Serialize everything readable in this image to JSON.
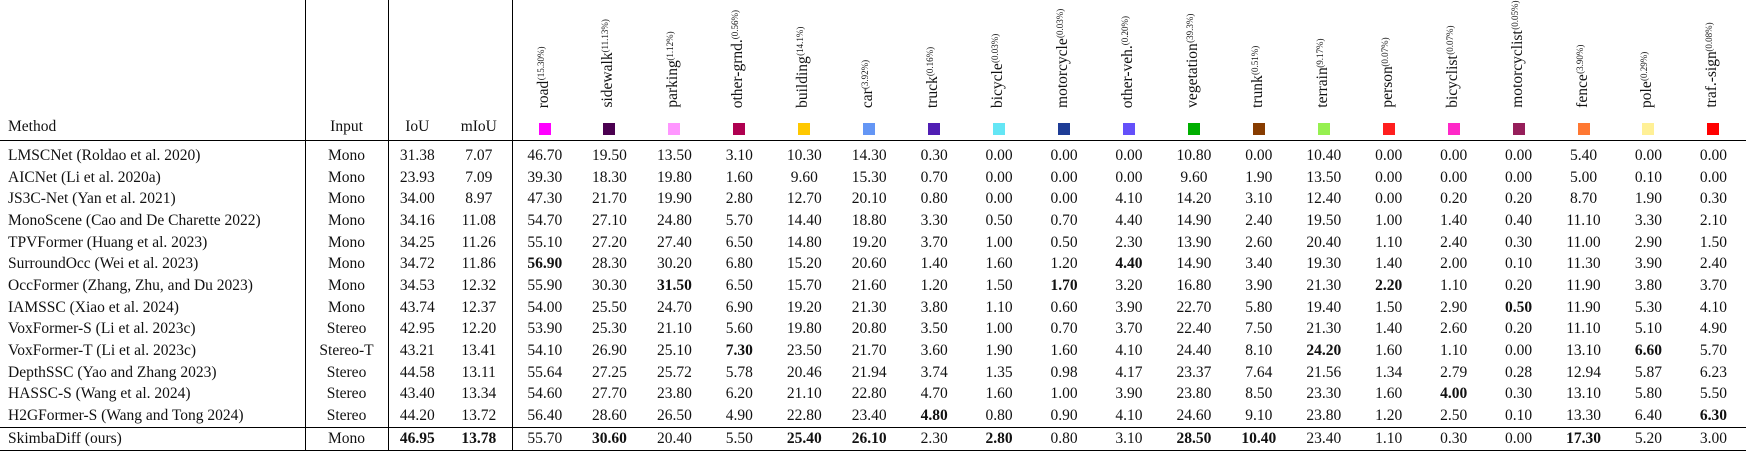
{
  "headers": {
    "method": "Method",
    "input": "Input",
    "iou": "IoU",
    "miou": "mIoU"
  },
  "classes": [
    {
      "name": "road",
      "pct": "(15.30%)",
      "color": "#ff00ff"
    },
    {
      "name": "sidewalk",
      "pct": "(11.13%)",
      "color": "#4b0050"
    },
    {
      "name": "parking",
      "pct": "(1.12%)",
      "color": "#ff96ff"
    },
    {
      "name": "other-grnd.",
      "pct": "(0.56%)",
      "color": "#af0050"
    },
    {
      "name": "building",
      "pct": "(14.1%)",
      "color": "#ffc800"
    },
    {
      "name": "car",
      "pct": "(3.92%)",
      "color": "#6496f5"
    },
    {
      "name": "truck",
      "pct": "(0.16%)",
      "color": "#501eb4"
    },
    {
      "name": "bicycle",
      "pct": "(0.03%)",
      "color": "#64e6f5"
    },
    {
      "name": "motorcycle",
      "pct": "(0.03%)",
      "color": "#1e3c96"
    },
    {
      "name": "other-veh.",
      "pct": "(0.20%)",
      "color": "#6450fa"
    },
    {
      "name": "vegetation",
      "pct": "(39.3%)",
      "color": "#00af00"
    },
    {
      "name": "trunk",
      "pct": "(0.51%)",
      "color": "#873c00"
    },
    {
      "name": "terrain",
      "pct": "(9.17%)",
      "color": "#96f050"
    },
    {
      "name": "person",
      "pct": "(0.07%)",
      "color": "#ff1e1e"
    },
    {
      "name": "bicyclist",
      "pct": "(0.07%)",
      "color": "#ff28c8"
    },
    {
      "name": "motorcyclist",
      "pct": "(0.05%)",
      "color": "#961e5a"
    },
    {
      "name": "fence",
      "pct": "(3.90%)",
      "color": "#ff7832"
    },
    {
      "name": "pole",
      "pct": "(0.29%)",
      "color": "#fff096"
    },
    {
      "name": "traf.-sign",
      "pct": "(0.08%)",
      "color": "#ff0000"
    }
  ],
  "rows": [
    {
      "method": "LMSCNet (Roldao et al. 2020)",
      "input": "Mono",
      "iou": "31.38",
      "miou": "7.07",
      "values": [
        "46.70",
        "19.50",
        "13.50",
        "3.10",
        "10.30",
        "14.30",
        "0.30",
        "0.00",
        "0.00",
        "0.00",
        "10.80",
        "0.00",
        "10.40",
        "0.00",
        "0.00",
        "0.00",
        "5.40",
        "0.00",
        "0.00"
      ],
      "bold": []
    },
    {
      "method": "AICNet (Li et al. 2020a)",
      "input": "Mono",
      "iou": "23.93",
      "miou": "7.09",
      "values": [
        "39.30",
        "18.30",
        "19.80",
        "1.60",
        "9.60",
        "15.30",
        "0.70",
        "0.00",
        "0.00",
        "0.00",
        "9.60",
        "1.90",
        "13.50",
        "0.00",
        "0.00",
        "0.00",
        "5.00",
        "0.10",
        "0.00"
      ],
      "bold": []
    },
    {
      "method": "JS3C-Net (Yan et al. 2021)",
      "input": "Mono",
      "iou": "34.00",
      "miou": "8.97",
      "values": [
        "47.30",
        "21.70",
        "19.90",
        "2.80",
        "12.70",
        "20.10",
        "0.80",
        "0.00",
        "0.00",
        "4.10",
        "14.20",
        "3.10",
        "12.40",
        "0.00",
        "0.20",
        "0.20",
        "8.70",
        "1.90",
        "0.30"
      ],
      "bold": []
    },
    {
      "method": "MonoScene (Cao and De Charette 2022)",
      "input": "Mono",
      "iou": "34.16",
      "miou": "11.08",
      "values": [
        "54.70",
        "27.10",
        "24.80",
        "5.70",
        "14.40",
        "18.80",
        "3.30",
        "0.50",
        "0.70",
        "4.40",
        "14.90",
        "2.40",
        "19.50",
        "1.00",
        "1.40",
        "0.40",
        "11.10",
        "3.30",
        "2.10"
      ],
      "bold": []
    },
    {
      "method": "TPVFormer (Huang et al. 2023)",
      "input": "Mono",
      "iou": "34.25",
      "miou": "11.26",
      "values": [
        "55.10",
        "27.20",
        "27.40",
        "6.50",
        "14.80",
        "19.20",
        "3.70",
        "1.00",
        "0.50",
        "2.30",
        "13.90",
        "2.60",
        "20.40",
        "1.10",
        "2.40",
        "0.30",
        "11.00",
        "2.90",
        "1.50"
      ],
      "bold": []
    },
    {
      "method": "SurroundOcc (Wei et al. 2023)",
      "input": "Mono",
      "iou": "34.72",
      "miou": "11.86",
      "values": [
        "56.90",
        "28.30",
        "30.20",
        "6.80",
        "15.20",
        "20.60",
        "1.40",
        "1.60",
        "1.20",
        "4.40",
        "14.90",
        "3.40",
        "19.30",
        "1.40",
        "2.00",
        "0.10",
        "11.30",
        "3.90",
        "2.40"
      ],
      "bold": [
        0,
        9
      ]
    },
    {
      "method": "OccFormer (Zhang, Zhu, and Du 2023)",
      "input": "Mono",
      "iou": "34.53",
      "miou": "12.32",
      "values": [
        "55.90",
        "30.30",
        "31.50",
        "6.50",
        "15.70",
        "21.60",
        "1.20",
        "1.50",
        "1.70",
        "3.20",
        "16.80",
        "3.90",
        "21.30",
        "2.20",
        "1.10",
        "0.20",
        "11.90",
        "3.80",
        "3.70"
      ],
      "bold": [
        2,
        8,
        13
      ]
    },
    {
      "method": "IAMSSC (Xiao et al. 2024)",
      "input": "Mono",
      "iou": "43.74",
      "miou": "12.37",
      "values": [
        "54.00",
        "25.50",
        "24.70",
        "6.90",
        "19.20",
        "21.30",
        "3.80",
        "1.10",
        "0.60",
        "3.90",
        "22.70",
        "5.80",
        "19.40",
        "1.50",
        "2.90",
        "0.50",
        "11.90",
        "5.30",
        "4.10"
      ],
      "bold": [
        15
      ]
    },
    {
      "method": "VoxFormer-S (Li et al. 2023c)",
      "input": "Stereo",
      "iou": "42.95",
      "miou": "12.20",
      "values": [
        "53.90",
        "25.30",
        "21.10",
        "5.60",
        "19.80",
        "20.80",
        "3.50",
        "1.00",
        "0.70",
        "3.70",
        "22.40",
        "7.50",
        "21.30",
        "1.40",
        "2.60",
        "0.20",
        "11.10",
        "5.10",
        "4.90"
      ],
      "bold": []
    },
    {
      "method": "VoxFormer-T (Li et al. 2023c)",
      "input": "Stereo-T",
      "iou": "43.21",
      "miou": "13.41",
      "values": [
        "54.10",
        "26.90",
        "25.10",
        "7.30",
        "23.50",
        "21.70",
        "3.60",
        "1.90",
        "1.60",
        "4.10",
        "24.40",
        "8.10",
        "24.20",
        "1.60",
        "1.10",
        "0.00",
        "13.10",
        "6.60",
        "5.70"
      ],
      "bold": [
        3,
        12,
        17
      ]
    },
    {
      "method": "DepthSSC (Yao and Zhang 2023)",
      "input": "Stereo",
      "iou": "44.58",
      "miou": "13.11",
      "values": [
        "55.64",
        "27.25",
        "25.72",
        "5.78",
        "20.46",
        "21.94",
        "3.74",
        "1.35",
        "0.98",
        "4.17",
        "23.37",
        "7.64",
        "21.56",
        "1.34",
        "2.79",
        "0.28",
        "12.94",
        "5.87",
        "6.23"
      ],
      "bold": []
    },
    {
      "method": "HASSC-S (Wang et al. 2024)",
      "input": "Stereo",
      "iou": "43.40",
      "miou": "13.34",
      "values": [
        "54.60",
        "27.70",
        "23.80",
        "6.20",
        "21.10",
        "22.80",
        "4.70",
        "1.60",
        "1.00",
        "3.90",
        "23.80",
        "8.50",
        "23.30",
        "1.60",
        "4.00",
        "0.30",
        "13.10",
        "5.80",
        "5.50"
      ],
      "bold": [
        14
      ]
    },
    {
      "method": "H2GFormer-S (Wang and Tong 2024)",
      "input": "Stereo",
      "iou": "44.20",
      "miou": "13.72",
      "values": [
        "56.40",
        "28.60",
        "26.50",
        "4.90",
        "22.80",
        "23.40",
        "4.80",
        "0.80",
        "0.90",
        "4.10",
        "24.60",
        "9.10",
        "23.80",
        "1.20",
        "2.50",
        "0.10",
        "13.30",
        "6.40",
        "6.30"
      ],
      "bold": [
        6,
        18
      ]
    },
    {
      "method": "SkimbaDiff (ours)",
      "input": "Mono",
      "iou": "46.95",
      "miou": "13.78",
      "values": [
        "55.70",
        "30.60",
        "20.40",
        "5.50",
        "25.40",
        "26.10",
        "2.30",
        "2.80",
        "0.80",
        "3.10",
        "28.50",
        "10.40",
        "23.40",
        "1.10",
        "0.30",
        "0.00",
        "17.30",
        "5.20",
        "3.00"
      ],
      "bold": [
        1,
        4,
        5,
        7,
        10,
        11,
        16
      ],
      "bold_iou": true,
      "bold_miou": true,
      "ours": true
    }
  ]
}
